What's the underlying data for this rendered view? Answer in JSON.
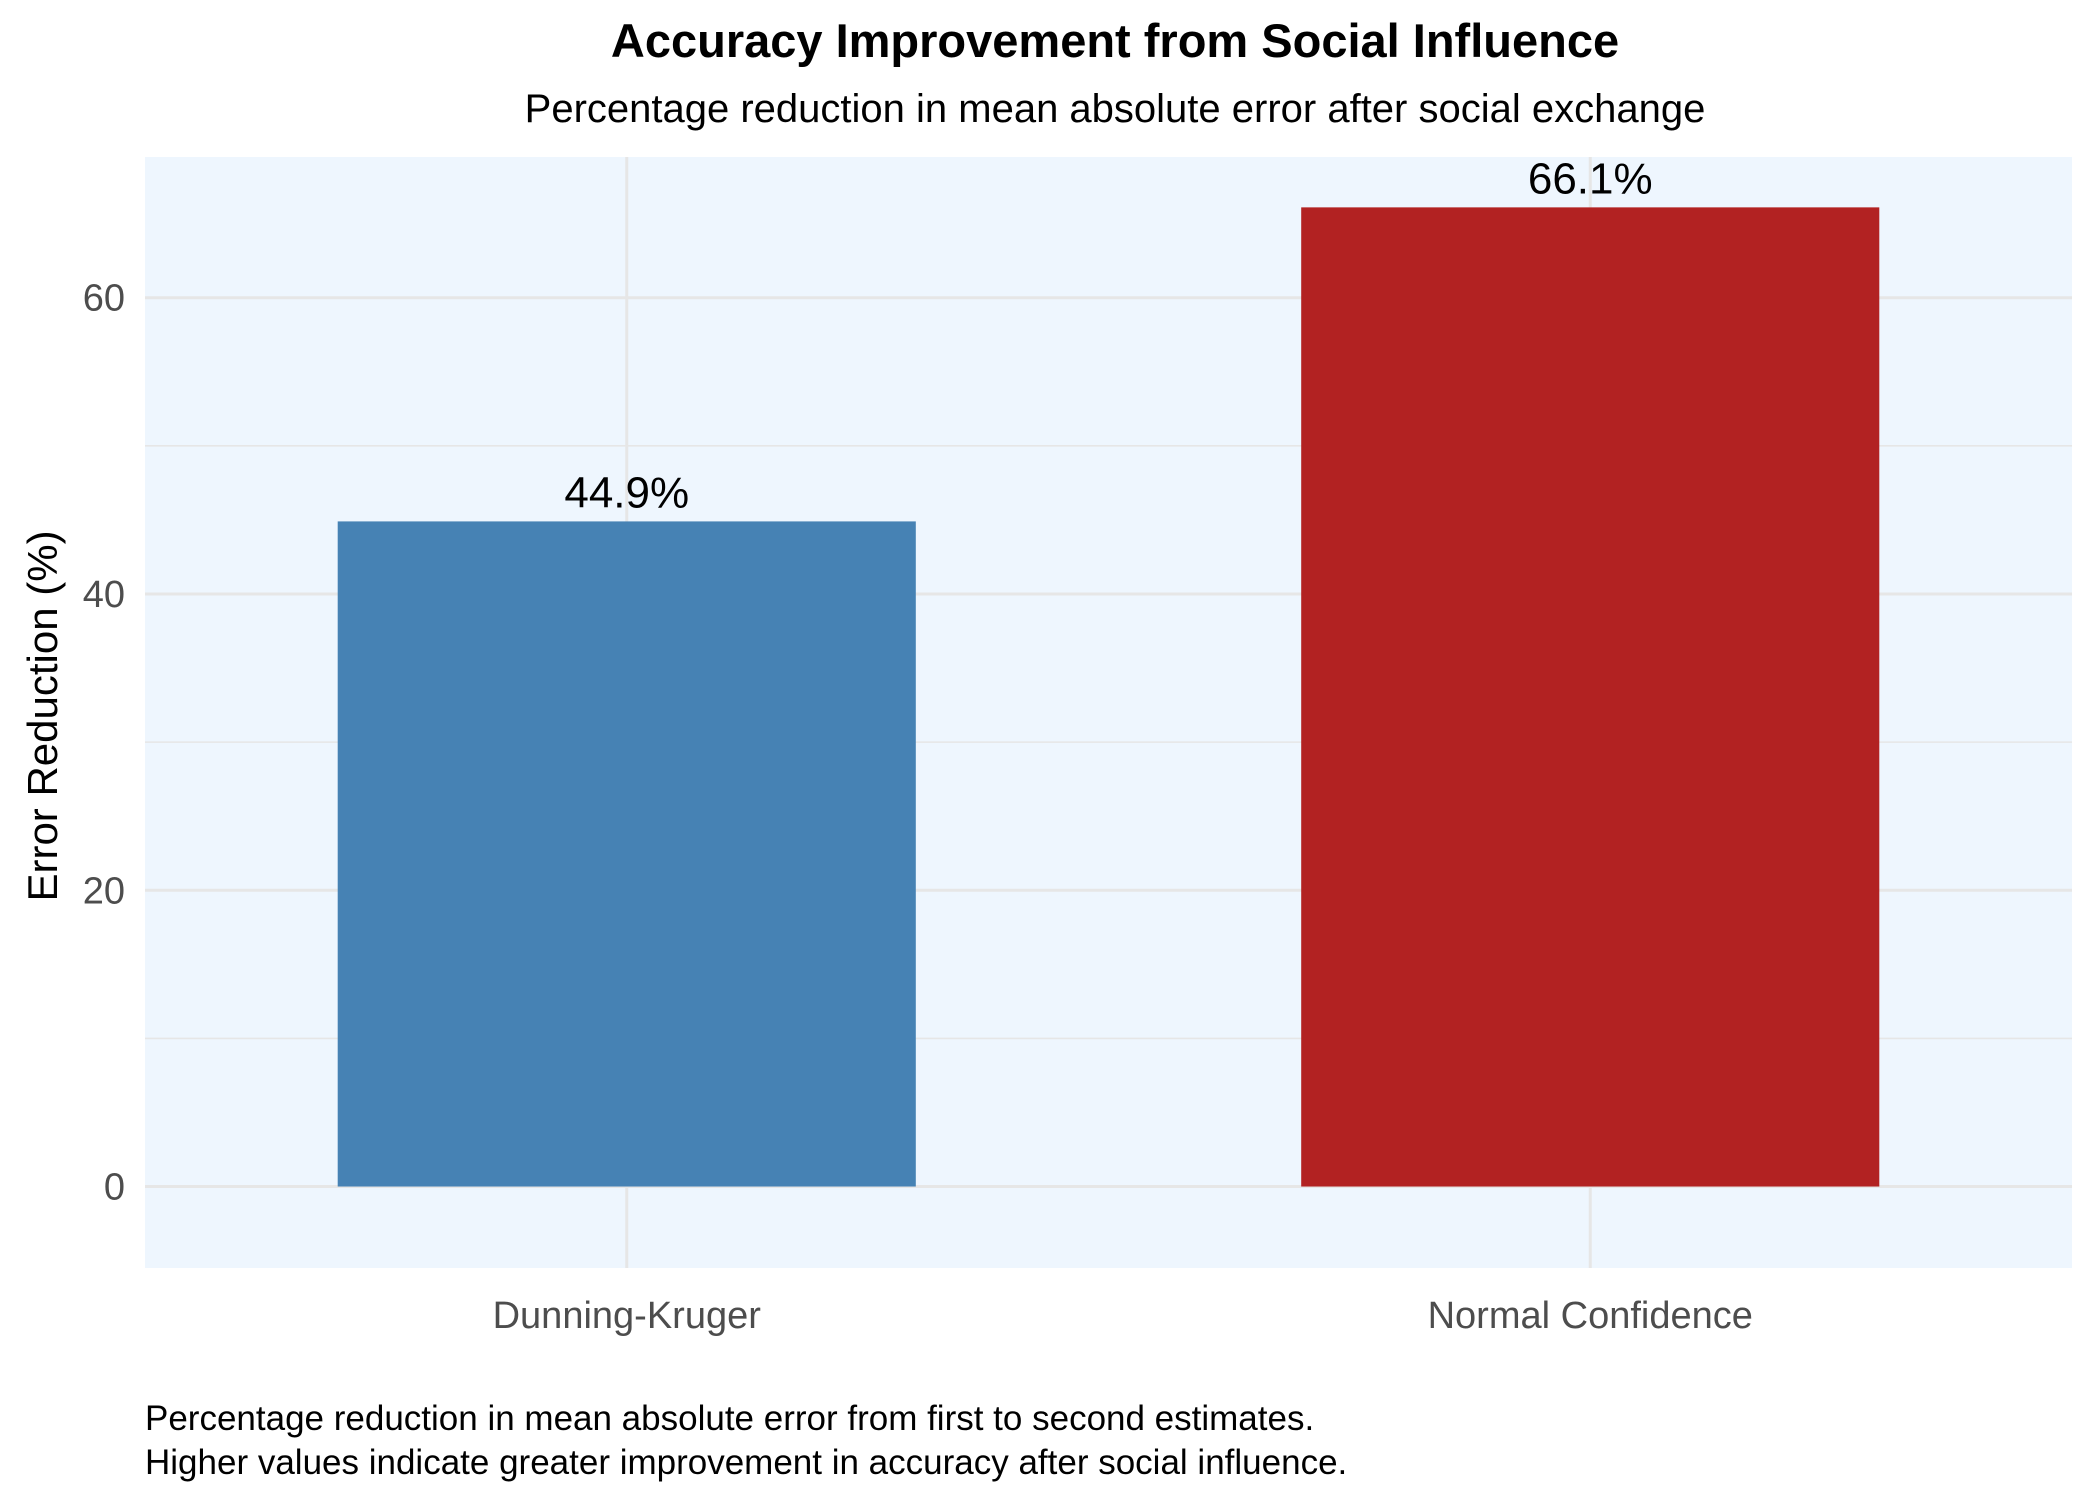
{
  "chart_data": {
    "type": "bar",
    "title": "Accuracy Improvement from Social Influence",
    "subtitle": "Percentage reduction in mean absolute error after social exchange",
    "xlabel": "",
    "ylabel": "Error Reduction (%)",
    "categories": [
      "Dunning-Kruger",
      "Normal Confidence"
    ],
    "values": [
      44.9,
      66.1
    ],
    "value_labels": [
      "44.9%",
      "66.1%"
    ],
    "bar_colors": [
      "#4682B4",
      "#B22222"
    ],
    "ylim": [
      -5.5,
      69.5
    ],
    "yticks": [
      0,
      20,
      40,
      60
    ],
    "ytick_labels": [
      "0",
      "20",
      "40",
      "60"
    ],
    "grid": true,
    "panel_background": "#EEF6FE",
    "gridline_color": "#E6E6E6",
    "legend": "none",
    "caption_lines": [
      "Percentage reduction in mean absolute error from first to second estimates.",
      "Higher values indicate greater improvement in accuracy after social influence."
    ]
  }
}
